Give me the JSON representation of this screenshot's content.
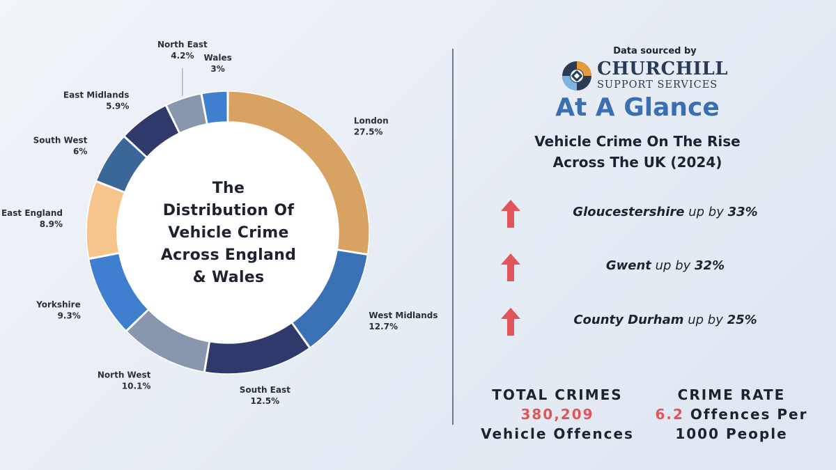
{
  "chart_data": {
    "type": "pie",
    "title": "The\nDistribution Of\nVehicle Crime\nAcross England\n& Wales",
    "slices": [
      {
        "label": "London",
        "value": 27.5,
        "display": "27.5%",
        "color": "#d8a262"
      },
      {
        "label": "West Midlands",
        "value": 12.7,
        "display": "12.7%",
        "color": "#3a70b4"
      },
      {
        "label": "South East",
        "value": 12.5,
        "display": "12.5%",
        "color": "#2f3a6b"
      },
      {
        "label": "North West",
        "value": 10.1,
        "display": "10.1%",
        "color": "#8897ad"
      },
      {
        "label": "Yorkshire",
        "value": 9.3,
        "display": "9.3%",
        "color": "#3e80cf"
      },
      {
        "label": "East England",
        "value": 8.9,
        "display": "8.9%",
        "color": "#f6c58b"
      },
      {
        "label": "South West",
        "value": 6,
        "display": "6%",
        "color": "#3a6698"
      },
      {
        "label": "East Midlands",
        "value": 5.9,
        "display": "5.9%",
        "color": "#2f3a6b"
      },
      {
        "label": "North East",
        "value": 4.2,
        "display": "4.2%",
        "color": "#8897ad"
      },
      {
        "label": "Wales",
        "value": 3,
        "display": "3%",
        "color": "#3e80cf"
      }
    ]
  },
  "source": {
    "caption": "Data sourced by",
    "brand": "CHURCHILL",
    "brand_sub": "SUPPORT SERVICES"
  },
  "glance": {
    "heading": "At A Glance",
    "subheading": "Vehicle Crime On The Rise\nAcross The UK (2024)",
    "items": [
      {
        "region": "Gloucestershire",
        "text": "up by",
        "change": "33%"
      },
      {
        "region": "Gwent",
        "text": "up by",
        "change": "32%"
      },
      {
        "region": "County Durham",
        "text": "up by",
        "change": "25%"
      }
    ]
  },
  "totals": {
    "title": "TOTAL CRIMES",
    "value": "380,209",
    "unit": "Vehicle Offences"
  },
  "rate": {
    "title": "CRIME RATE",
    "value": "6.2",
    "unit_a": "Offences Per",
    "unit_b": "1000 People"
  },
  "colors": {
    "accent": "#3a6fb2",
    "highlight": "#e0545a",
    "arrow": "#e0545a"
  }
}
